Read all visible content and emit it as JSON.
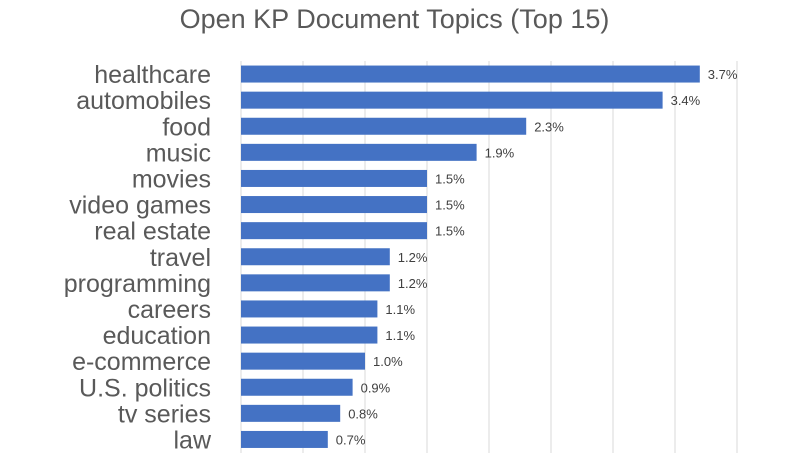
{
  "chart_data": {
    "type": "bar",
    "orientation": "horizontal",
    "title": "Open KP Document Topics (Top 15)",
    "categories": [
      "healthcare",
      "automobiles",
      "food",
      "music",
      "movies",
      "video games",
      "real estate",
      "travel",
      "programming",
      "careers",
      "education",
      "e-commerce",
      "U.S. politics",
      "tv series",
      "law"
    ],
    "values": [
      3.7,
      3.4,
      2.3,
      1.9,
      1.5,
      1.5,
      1.5,
      1.2,
      1.2,
      1.1,
      1.1,
      1.0,
      0.9,
      0.8,
      0.7
    ],
    "value_labels": [
      "3.7%",
      "3.4%",
      "2.3%",
      "1.9%",
      "1.5%",
      "1.5%",
      "1.5%",
      "1.2%",
      "1.2%",
      "1.1%",
      "1.1%",
      "1.0%",
      "0.9%",
      "0.8%",
      "0.7%"
    ],
    "xlabel": "",
    "ylabel": "",
    "xlim": [
      0,
      4.0
    ],
    "grid": true,
    "bar_color": "#4472C4"
  }
}
